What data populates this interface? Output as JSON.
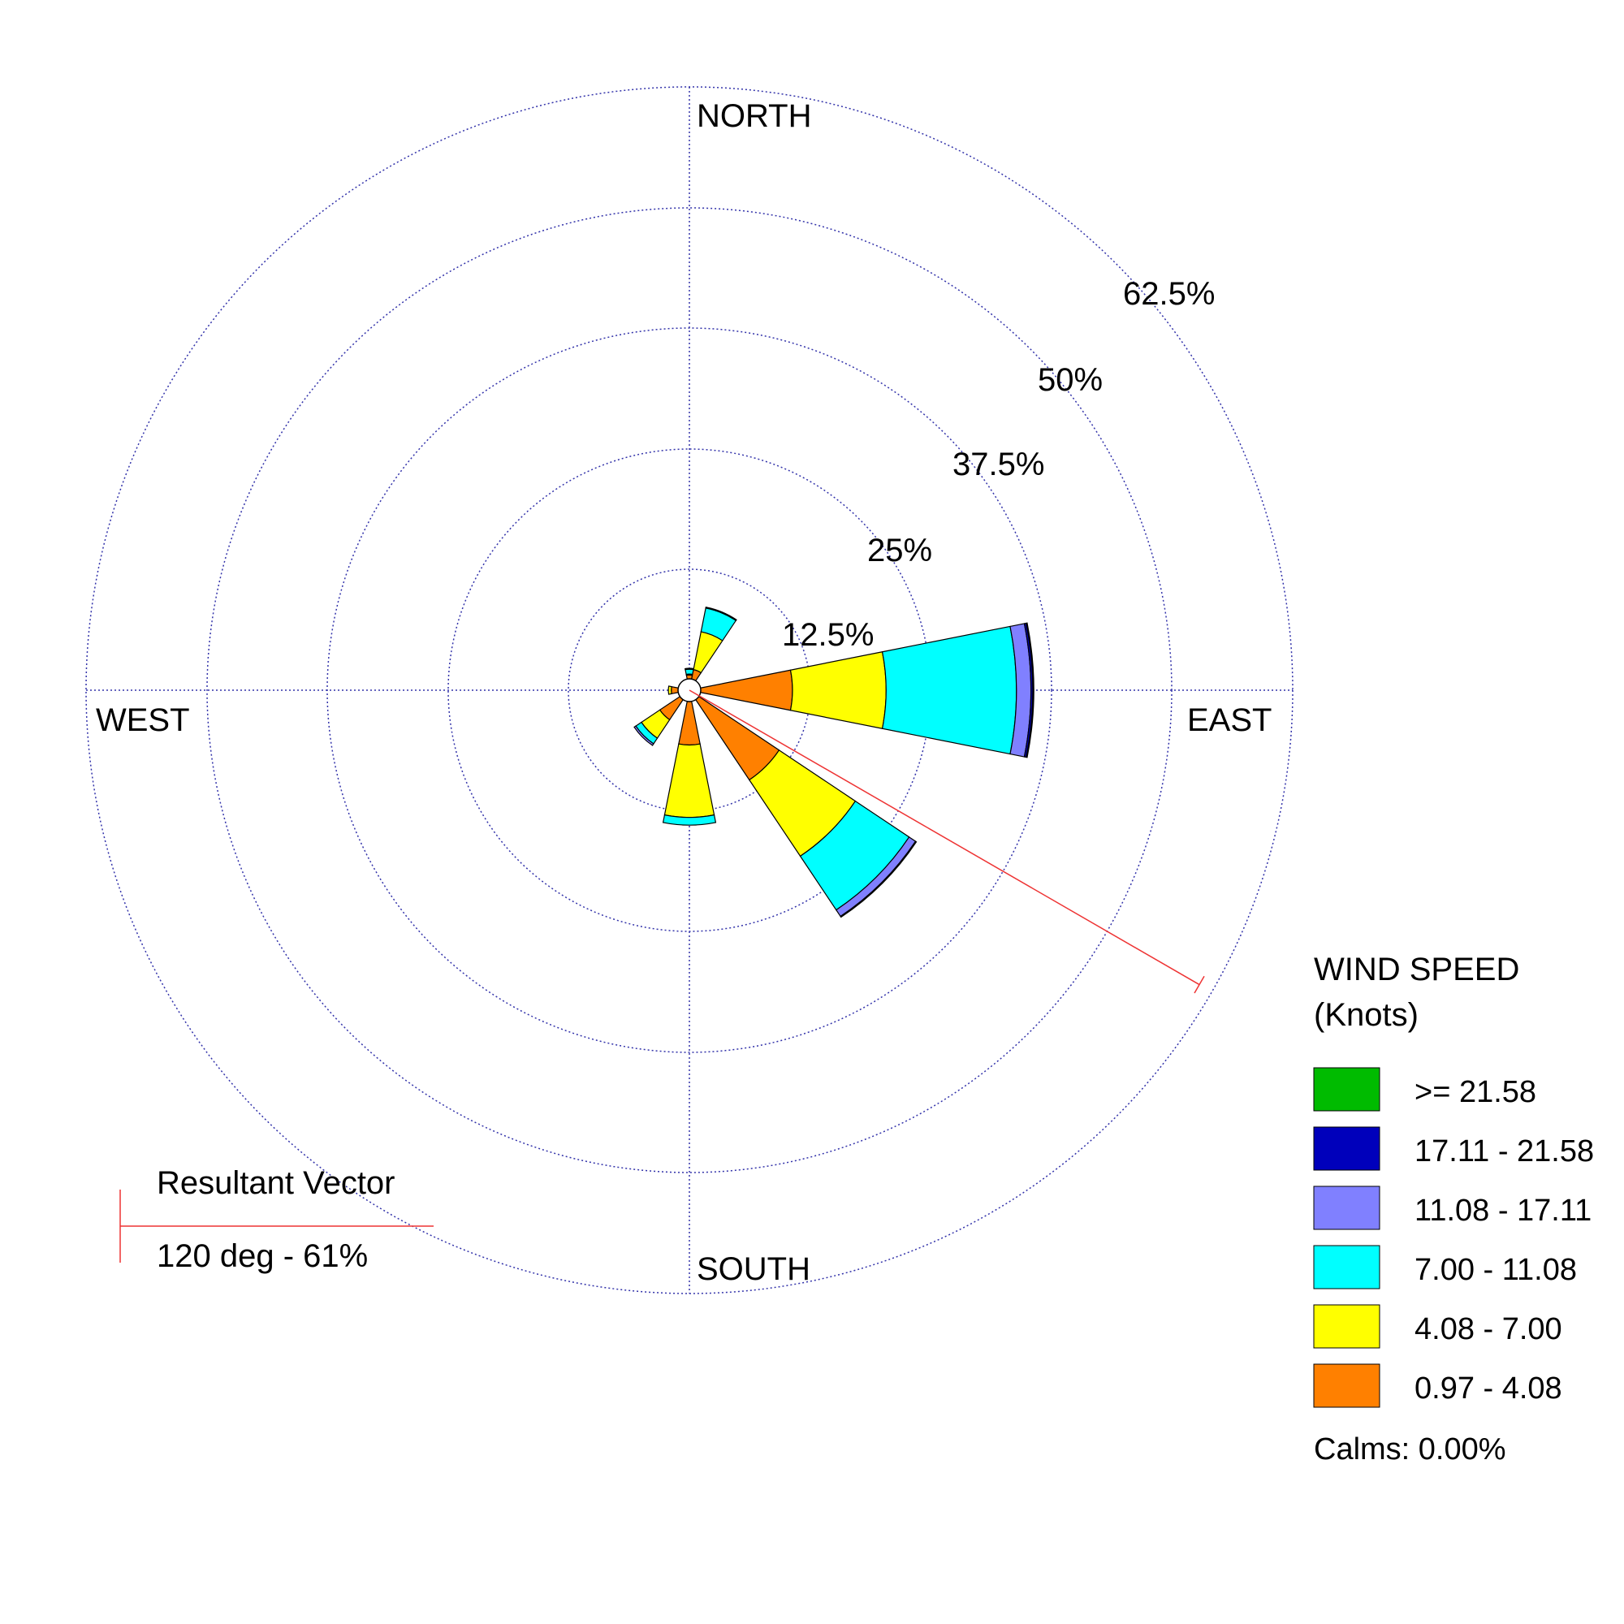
{
  "chart_data": {
    "type": "windrose",
    "directions": {
      "north": "NORTH",
      "south": "SOUTH",
      "east": "EAST",
      "west": "WEST"
    },
    "ring_labels": [
      "12.5%",
      "25%",
      "37.5%",
      "50%",
      "62.5%"
    ],
    "ring_values": [
      12.5,
      25,
      37.5,
      50,
      62.5
    ],
    "max_percent": 62.5,
    "sector_width_deg": 22.5,
    "speed_bins": [
      {
        "label": ">= 21.58",
        "color": "#00bb00"
      },
      {
        "label": "17.11 - 21.58",
        "color": "#0000bb"
      },
      {
        "label": "11.08 - 17.11",
        "color": "#8080ff"
      },
      {
        "label": "7.00 - 11.08",
        "color": "#00ffff"
      },
      {
        "label": "4.08 - 7.00",
        "color": "#ffff00"
      },
      {
        "label": "0.97 - 4.08",
        "color": "#ff8000"
      }
    ],
    "sectors": [
      {
        "dir": 0,
        "cumulative": [
          0.4,
          0.5,
          1.0,
          1.1,
          1.1,
          1.1
        ]
      },
      {
        "dir": 22.5,
        "cumulative": [
          1.0,
          5.0,
          7.5,
          7.6,
          7.6,
          7.6
        ]
      },
      {
        "dir": 90,
        "cumulative": [
          9.5,
          19.2,
          32.7,
          34.2,
          34.4,
          34.5
        ]
      },
      {
        "dir": 135,
        "cumulative": [
          10.0,
          19.5,
          26.2,
          27.0,
          27.1,
          27.1
        ]
      },
      {
        "dir": 180,
        "cumulative": [
          4.5,
          12.0,
          12.8,
          12.8,
          12.8,
          12.8
        ]
      },
      {
        "dir": 225,
        "cumulative": [
          2.5,
          4.8,
          5.5,
          5.7,
          5.7,
          5.7
        ]
      },
      {
        "dir": 270,
        "cumulative": [
          0.7,
          1.0,
          1.0,
          1.0,
          1.0,
          1.0
        ]
      }
    ],
    "resultant_vector": {
      "direction_deg": 120,
      "percent": 61,
      "title": "Resultant Vector",
      "label": "120 deg - 61%",
      "color": "#ee3333"
    },
    "legend": {
      "title_line1": "WIND SPEED",
      "title_line2": "(Knots)",
      "calms": "Calms: 0.00%"
    }
  }
}
